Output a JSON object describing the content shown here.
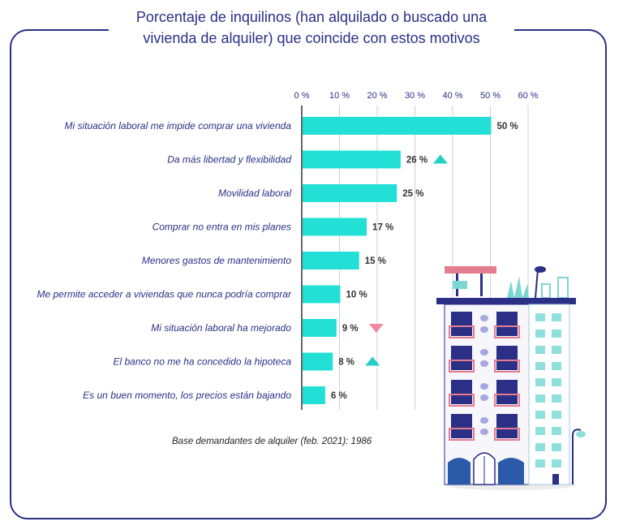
{
  "title_line1": "Porcentaje de inquilinos (han alquilado o buscado una",
  "title_line2": "vivienda de alquiler) que coincide con estos motivos",
  "footnote": "Base demandantes de alquiler (feb. 2021): 1986",
  "colors": {
    "bar": "#23e0d6",
    "up": "#23cfc6",
    "down": "#ef8aa0",
    "frame": "#2b2f86",
    "grid": "#d0d0d0",
    "axis": "#666666"
  },
  "chart_data": {
    "type": "bar",
    "orientation": "horizontal",
    "categories": [
      "Mi situación laboral me impide comprar una vivienda",
      "Da más libertad y flexibilidad",
      "Movilidad laboral",
      "Comprar no entra en mis planes",
      "Menores gastos de mantenimiento",
      "Me permite acceder a viviendas que nunca podría comprar",
      "Mi situación laboral ha mejorado",
      "El banco no me ha concedido la hipoteca",
      "Es un buen momento, los precios están bajando"
    ],
    "values": [
      50,
      26,
      25,
      17,
      15,
      10,
      9,
      8,
      6
    ],
    "value_labels": [
      "50 %",
      "26 %",
      "25 %",
      "17 %",
      "15 %",
      "10 %",
      "9 %",
      "8 %",
      "6 %"
    ],
    "trend": [
      "",
      "up",
      "",
      "",
      "",
      "",
      "down",
      "up",
      ""
    ],
    "xlim": [
      0,
      60
    ],
    "ticks": [
      0,
      10,
      20,
      30,
      40,
      50,
      60
    ],
    "tick_labels": [
      "0 %",
      "10 %",
      "20 %",
      "30 %",
      "40 %",
      "50 %",
      "60 %"
    ],
    "axis_position": "top",
    "grid": true,
    "legend": "none"
  }
}
